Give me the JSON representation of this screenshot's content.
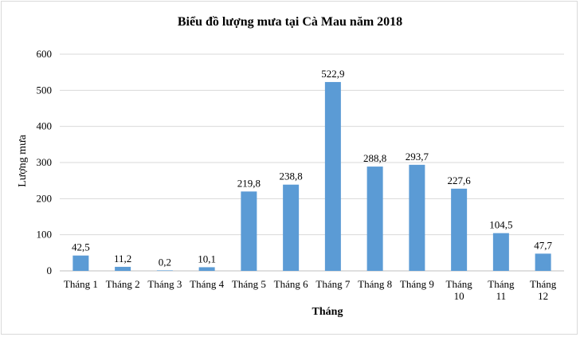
{
  "chart_data": {
    "type": "bar",
    "title": "Biểu đồ lượng mưa tại Cà Mau năm 2018",
    "xlabel": "Tháng",
    "ylabel": "Lượng mưa",
    "categories": [
      [
        "Tháng 1"
      ],
      [
        "Tháng 2"
      ],
      [
        "Tháng 3"
      ],
      [
        "Tháng 4"
      ],
      [
        "Tháng 5"
      ],
      [
        "Tháng 6"
      ],
      [
        "Tháng 7"
      ],
      [
        "Tháng 8"
      ],
      [
        "Tháng 9"
      ],
      [
        "Tháng",
        "10"
      ],
      [
        "Tháng",
        "11"
      ],
      [
        "Tháng",
        "12"
      ]
    ],
    "values": [
      42.5,
      11.2,
      0.2,
      10.1,
      219.8,
      238.8,
      522.9,
      288.8,
      293.7,
      227.6,
      104.5,
      47.7
    ],
    "data_labels": [
      "42,5",
      "11,2",
      "0,2",
      "10,1",
      "219,8",
      "238,8",
      "522,9",
      "288,8",
      "293,7",
      "227,6",
      "104,5",
      "47,7"
    ],
    "yticks": [
      0,
      100,
      200,
      300,
      400,
      500,
      600
    ],
    "ylim": [
      0,
      600
    ],
    "grid": true,
    "legend": "none",
    "bar_color": "#5b9bd5",
    "grid_color": "#d9d9d9"
  }
}
